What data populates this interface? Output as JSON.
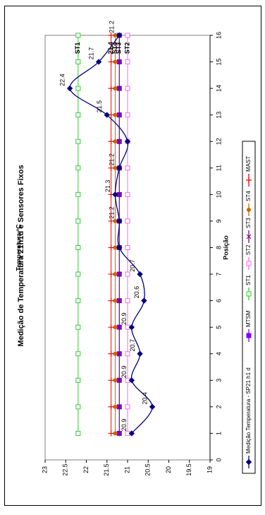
{
  "chart_data": {
    "type": "line",
    "title": "Medição de Temperatura 21h1d e Sensores Fixos",
    "xlabel": "Posição",
    "ylabel": "Temperatura ºC",
    "x": [
      1,
      2,
      3,
      4,
      5,
      6,
      7,
      8,
      9,
      10,
      11,
      12,
      13,
      14,
      15,
      16
    ],
    "xlim": [
      0,
      16
    ],
    "ylim": [
      19,
      23
    ],
    "yticks": [
      19,
      19.5,
      20,
      20.5,
      21,
      21.5,
      22,
      22.5,
      23
    ],
    "grid": false,
    "legend_position": "bottom",
    "series": [
      {
        "name": "Medição Temperatura - SP21 h1 d",
        "color": "#000080",
        "marker": "diamond",
        "smooth": true,
        "values": [
          20.9,
          20.4,
          20.9,
          20.7,
          20.9,
          20.6,
          20.7,
          21.2,
          21.2,
          21.3,
          21.2,
          21.0,
          21.5,
          22.4,
          21.7,
          21.2
        ],
        "labels": [
          "20.9",
          "20.4",
          "20.9",
          "20.7",
          "20.9",
          "20.6",
          "20.7",
          "",
          "21.2",
          "21.3",
          "21.2",
          "",
          "21.5",
          "22.4",
          "21.7",
          "21.2"
        ]
      },
      {
        "name": "MTSM",
        "color": "#8000FF",
        "marker": "square",
        "values": [
          21.2,
          21.2,
          21.2,
          21.2,
          21.2,
          21.2,
          21.2,
          21.2,
          21.2,
          21.2,
          21.2,
          21.2,
          21.2,
          21.2,
          21.2,
          21.2
        ]
      },
      {
        "name": "ST1",
        "color": "#33CC33",
        "marker": "square-open",
        "values": [
          22.2,
          22.2,
          22.2,
          22.2,
          22.2,
          22.2,
          22.2,
          22.2,
          22.2,
          22.2,
          22.2,
          22.2,
          22.2,
          22.2,
          22.2,
          22.2
        ],
        "end_label": "ST1"
      },
      {
        "name": "ST2",
        "color": "#FF66FF",
        "marker": "square-open",
        "values": [
          21.0,
          21.0,
          21.0,
          21.0,
          21.0,
          21.0,
          21.0,
          21.0,
          21.0,
          21.0,
          21.0,
          21.0,
          21.0,
          21.0,
          21.0,
          21.0
        ],
        "end_label": "ST2"
      },
      {
        "name": "ST3",
        "color": "#800080",
        "marker": "star",
        "values": [
          21.2,
          21.2,
          21.2,
          21.2,
          21.2,
          21.2,
          21.2,
          21.2,
          21.2,
          21.2,
          21.2,
          21.2,
          21.2,
          21.2,
          21.2,
          21.2
        ],
        "end_label": "ST3"
      },
      {
        "name": "ST4",
        "color": "#CC6600",
        "marker": "circle",
        "values": [
          21.3,
          21.3,
          21.3,
          21.3,
          21.3,
          21.3,
          21.3,
          21.3,
          21.3,
          21.3,
          21.3,
          21.3,
          21.3,
          21.3,
          21.3,
          21.3
        ],
        "end_label": "ST4"
      },
      {
        "name": "MAST",
        "color": "#FF0000",
        "marker": "plus",
        "values": [
          21.4,
          21.4,
          21.4,
          21.4,
          21.4,
          21.4,
          21.4,
          21.4,
          21.4,
          21.4,
          21.4,
          21.4,
          21.4,
          21.4,
          21.4,
          21.4
        ],
        "end_label": "21.4"
      }
    ]
  }
}
